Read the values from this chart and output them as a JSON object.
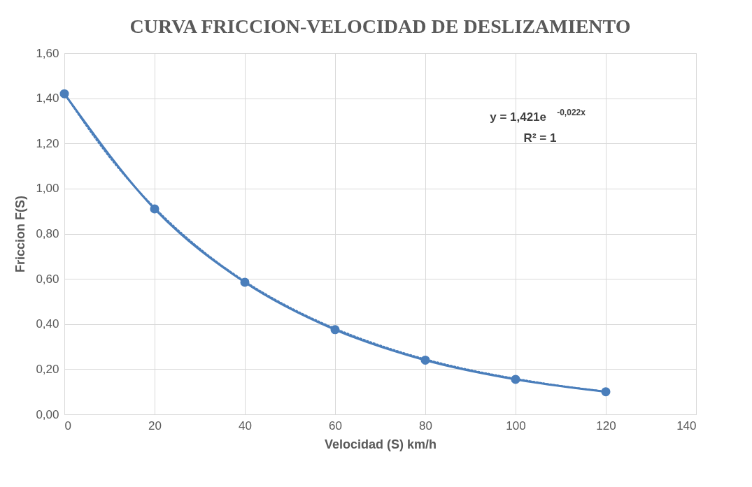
{
  "chart_data": {
    "type": "line",
    "title": "CURVA FRICCION-VELOCIDAD DE DESLIZAMIENTO",
    "xlabel": "Velocidad (S) km/h",
    "ylabel": "Friccion F(S)",
    "series": [
      {
        "color": "#4a7ebb",
        "x": [
          0,
          20,
          40,
          60,
          80,
          100,
          120
        ],
        "values": [
          1.42,
          0.91,
          0.585,
          0.375,
          0.24,
          0.155,
          0.1
        ],
        "marker": "circle",
        "line_style": "solid"
      },
      {
        "type": "line",
        "color": "#4a7ebb",
        "x": [
          0,
          10,
          20,
          30,
          40,
          50,
          60,
          70,
          80,
          90,
          100,
          110,
          120
        ],
        "values": [
          1.421,
          1.14,
          0.915,
          0.734,
          0.589,
          0.473,
          0.38,
          0.305,
          0.244,
          0.196,
          0.158,
          0.126,
          0.101
        ],
        "marker": "none",
        "line_style": "dotted"
      }
    ],
    "annotations": [
      {
        "text": "y = 1,421e$^{-0,022x}$"
      },
      {
        "text": "R² = 1"
      }
    ],
    "xlim": [
      0,
      140
    ],
    "xticks": [
      0,
      20,
      40,
      60,
      80,
      100,
      120,
      140
    ],
    "ylim": [
      0,
      1.6
    ],
    "yticks": [
      {
        "value": 0,
        "label": "0,00"
      },
      {
        "value": 0.2,
        "label": "0,20"
      },
      {
        "value": 0.4,
        "label": "0,40"
      },
      {
        "value": 0.6,
        "label": "0,60"
      },
      {
        "value": 0.8,
        "label": "0,80"
      },
      {
        "value": 1.0,
        "label": "1,00"
      },
      {
        "value": 1.2,
        "label": "1,20"
      },
      {
        "value": 1.4,
        "label": "1,40"
      },
      {
        "value": 1.6,
        "label": "1,60"
      }
    ],
    "grid": true
  }
}
